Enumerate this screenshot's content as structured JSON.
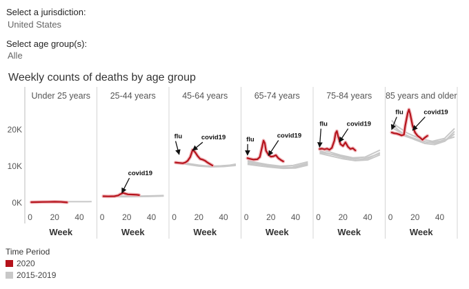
{
  "filters": {
    "jurisdiction_label": "Select a jurisdiction:",
    "jurisdiction_value": "United States",
    "age_label": "Select age group(s):",
    "age_value": "Alle"
  },
  "colors": {
    "series_2020": "#b5121b",
    "series_baseline": "#c8c8c8",
    "band_2020": "#f0b8bc",
    "axis": "#bbbbbb",
    "divider": "#d4d4d4"
  },
  "chart_data": {
    "type": "line",
    "title": "Weekly counts of deaths by age group",
    "xlabel": "Week",
    "ylabel": "",
    "y_ticks": [
      0,
      10000,
      20000
    ],
    "y_tick_labels": [
      "0K",
      "10K",
      "20K"
    ],
    "ylim": [
      -1500,
      26000
    ],
    "x_ticks": [
      0,
      20,
      40
    ],
    "xlim": [
      -2,
      52
    ],
    "legend_title": "Time Period",
    "legend": [
      {
        "name": "2020",
        "color": "#b5121b"
      },
      {
        "name": "2015-2019",
        "color": "#c8c8c8"
      }
    ],
    "panels": [
      {
        "name": "Under 25 years",
        "baseline": [
          [
            [
              1,
              300
            ],
            [
              10,
              300
            ],
            [
              20,
              320
            ],
            [
              30,
              300
            ],
            [
              40,
              300
            ],
            [
              50,
              320
            ]
          ]
        ],
        "series_2020": [
          [
            1,
            180
          ],
          [
            5,
            200
          ],
          [
            10,
            230
          ],
          [
            15,
            260
          ],
          [
            20,
            280
          ],
          [
            25,
            260
          ],
          [
            28,
            180
          ],
          [
            30,
            120
          ]
        ],
        "annotations": []
      },
      {
        "name": "25-44 years",
        "baseline": [
          [
            [
              1,
              1800
            ],
            [
              10,
              1750
            ],
            [
              20,
              1700
            ],
            [
              30,
              1750
            ],
            [
              40,
              1800
            ],
            [
              50,
              1900
            ]
          ],
          [
            [
              1,
              1700
            ],
            [
              10,
              1650
            ],
            [
              20,
              1650
            ],
            [
              30,
              1700
            ],
            [
              40,
              1750
            ],
            [
              50,
              1850
            ]
          ],
          [
            [
              1,
              1900
            ],
            [
              10,
              1850
            ],
            [
              20,
              1800
            ],
            [
              30,
              1850
            ],
            [
              40,
              1900
            ],
            [
              50,
              2000
            ]
          ]
        ],
        "series_2020": [
          [
            1,
            1800
          ],
          [
            5,
            1750
          ],
          [
            10,
            1800
          ],
          [
            13,
            2000
          ],
          [
            15,
            2400
          ],
          [
            17,
            2700
          ],
          [
            19,
            2500
          ],
          [
            21,
            2300
          ],
          [
            25,
            2250
          ],
          [
            28,
            2200
          ],
          [
            30,
            2100
          ]
        ],
        "annotations": [
          {
            "text": "covid19",
            "x": 21,
            "y": 7500,
            "ax": 16,
            "ay": 2700
          }
        ]
      },
      {
        "name": "45-64 years",
        "baseline": [
          [
            [
              1,
              11200
            ],
            [
              6,
              11000
            ],
            [
              12,
              10700
            ],
            [
              20,
              10300
            ],
            [
              28,
              10000
            ],
            [
              36,
              10000
            ],
            [
              44,
              10200
            ],
            [
              50,
              10600
            ]
          ],
          [
            [
              1,
              11000
            ],
            [
              8,
              10700
            ],
            [
              15,
              10300
            ],
            [
              22,
              10100
            ],
            [
              30,
              10000
            ],
            [
              38,
              10100
            ],
            [
              46,
              10300
            ],
            [
              50,
              10400
            ]
          ],
          [
            [
              1,
              10800
            ],
            [
              10,
              10500
            ],
            [
              20,
              10000
            ],
            [
              30,
              9800
            ],
            [
              40,
              9900
            ],
            [
              50,
              10200
            ]
          ]
        ],
        "series_2020": [
          [
            1,
            11000
          ],
          [
            4,
            10900
          ],
          [
            7,
            10800
          ],
          [
            9,
            11000
          ],
          [
            11,
            11500
          ],
          [
            13,
            12500
          ],
          [
            15,
            14500
          ],
          [
            17,
            13800
          ],
          [
            19,
            12800
          ],
          [
            21,
            12000
          ],
          [
            23,
            11800
          ],
          [
            25,
            11500
          ],
          [
            27,
            11000
          ],
          [
            29,
            10600
          ],
          [
            31,
            10200
          ]
        ],
        "annotations": [
          {
            "text": "flu",
            "x": 0,
            "y": 17600,
            "ax": 4,
            "ay": 13200
          },
          {
            "text": "covid19",
            "x": 22,
            "y": 17300,
            "ax": 15,
            "ay": 14300
          }
        ]
      },
      {
        "name": "65-74 years",
        "baseline": [
          [
            [
              1,
              11200
            ],
            [
              10,
              10800
            ],
            [
              20,
              10300
            ],
            [
              30,
              9700
            ],
            [
              40,
              9700
            ],
            [
              50,
              10500
            ]
          ],
          [
            [
              1,
              10500
            ],
            [
              10,
              10100
            ],
            [
              20,
              9700
            ],
            [
              30,
              9400
            ],
            [
              40,
              9500
            ],
            [
              50,
              10300
            ]
          ],
          [
            [
              1,
              11500
            ],
            [
              8,
              11000
            ],
            [
              18,
              10400
            ],
            [
              28,
              10000
            ],
            [
              38,
              10200
            ],
            [
              50,
              11200
            ]
          ],
          [
            [
              1,
              10800
            ],
            [
              12,
              10400
            ],
            [
              24,
              9800
            ],
            [
              36,
              9600
            ],
            [
              50,
              10800
            ]
          ]
        ],
        "series_2020": [
          [
            1,
            12200
          ],
          [
            3,
            12000
          ],
          [
            6,
            11800
          ],
          [
            9,
            11900
          ],
          [
            11,
            12500
          ],
          [
            13,
            15500
          ],
          [
            14,
            17000
          ],
          [
            15,
            16300
          ],
          [
            16,
            14200
          ],
          [
            18,
            13100
          ],
          [
            20,
            12600
          ],
          [
            22,
            12700
          ],
          [
            24,
            13000
          ],
          [
            26,
            12200
          ],
          [
            28,
            11700
          ],
          [
            30,
            11300
          ]
        ],
        "annotations": [
          {
            "text": "flu",
            "x": 0,
            "y": 16800,
            "ax": 1,
            "ay": 13000
          },
          {
            "text": "covid19",
            "x": 25,
            "y": 17800,
            "ax": 18,
            "ay": 12900
          }
        ]
      },
      {
        "name": "75-84 years",
        "baseline": [
          [
            [
              1,
              14200
            ],
            [
              10,
              13300
            ],
            [
              20,
              12400
            ],
            [
              30,
              11900
            ],
            [
              40,
              12100
            ],
            [
              50,
              13700
            ]
          ],
          [
            [
              1,
              13500
            ],
            [
              10,
              12800
            ],
            [
              20,
              12000
            ],
            [
              30,
              11500
            ],
            [
              40,
              11700
            ],
            [
              50,
              13100
            ]
          ],
          [
            [
              1,
              14700
            ],
            [
              8,
              14000
            ],
            [
              18,
              13000
            ],
            [
              28,
              12300
            ],
            [
              38,
              12500
            ],
            [
              50,
              14400
            ]
          ],
          [
            [
              1,
              13800
            ],
            [
              12,
              13200
            ],
            [
              24,
              12300
            ],
            [
              36,
              11900
            ],
            [
              50,
              13500
            ]
          ]
        ],
        "series_2020": [
          [
            1,
            14700
          ],
          [
            3,
            14800
          ],
          [
            5,
            14600
          ],
          [
            7,
            14800
          ],
          [
            9,
            14500
          ],
          [
            11,
            15000
          ],
          [
            13,
            17000
          ],
          [
            14,
            19000
          ],
          [
            15,
            19600
          ],
          [
            16,
            18200
          ],
          [
            18,
            16000
          ],
          [
            20,
            15500
          ],
          [
            22,
            16500
          ],
          [
            24,
            15300
          ],
          [
            26,
            14700
          ],
          [
            28,
            14900
          ],
          [
            30,
            14300
          ]
        ],
        "annotations": [
          {
            "text": "flu",
            "x": 1,
            "y": 21000,
            "ax": 1,
            "ay": 15200
          },
          {
            "text": "covid19",
            "x": 23,
            "y": 21000,
            "ax": 17,
            "ay": 16600
          }
        ]
      },
      {
        "name": "85 years and older",
        "baseline": [
          [
            [
              1,
              21500
            ],
            [
              6,
              20000
            ],
            [
              12,
              18500
            ],
            [
              20,
              17200
            ],
            [
              28,
              16200
            ],
            [
              36,
              15900
            ],
            [
              44,
              16800
            ],
            [
              52,
              19500
            ]
          ],
          [
            [
              1,
              20500
            ],
            [
              8,
              19300
            ],
            [
              16,
              18000
            ],
            [
              26,
              16800
            ],
            [
              36,
              16300
            ],
            [
              44,
              16800
            ],
            [
              52,
              18800
            ]
          ],
          [
            [
              1,
              22500
            ],
            [
              5,
              21000
            ],
            [
              14,
              19000
            ],
            [
              24,
              17500
            ],
            [
              34,
              16800
            ],
            [
              44,
              17600
            ],
            [
              52,
              20300
            ]
          ],
          [
            [
              1,
              19500
            ],
            [
              10,
              18400
            ],
            [
              20,
              17300
            ],
            [
              30,
              16500
            ],
            [
              40,
              16800
            ],
            [
              52,
              18000
            ]
          ]
        ],
        "series_2020": [
          [
            1,
            19200
          ],
          [
            3,
            19000
          ],
          [
            5,
            18900
          ],
          [
            7,
            18700
          ],
          [
            9,
            18400
          ],
          [
            11,
            18600
          ],
          [
            12,
            21000
          ],
          [
            14,
            24500
          ],
          [
            15,
            25500
          ],
          [
            16,
            24300
          ],
          [
            18,
            21000
          ],
          [
            20,
            19200
          ],
          [
            22,
            18300
          ],
          [
            24,
            17800
          ],
          [
            26,
            17200
          ],
          [
            28,
            17800
          ],
          [
            30,
            18300
          ]
        ],
        "annotations": [
          {
            "text": "flu",
            "x": 4,
            "y": 24200,
            "ax": 1,
            "ay": 20000
          },
          {
            "text": "covid19",
            "x": 27,
            "y": 24200,
            "ax": 18,
            "ay": 19800
          }
        ]
      }
    ]
  }
}
